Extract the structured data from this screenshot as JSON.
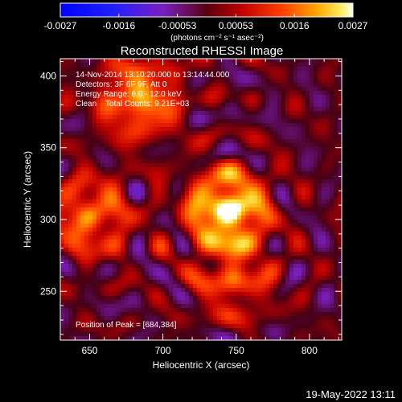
{
  "chart_data": {
    "type": "heatmap",
    "title": "Reconstructed RHESSI Image",
    "xlabel": "Heliocentric X (arcsec)",
    "ylabel": "Heliocentric Y (arcsec)",
    "xlim": [
      630,
      822
    ],
    "ylim": [
      216,
      412
    ],
    "xticks": [
      650,
      700,
      750,
      800
    ],
    "yticks": [
      250,
      300,
      350,
      400
    ],
    "colorbar": {
      "colormap": "rhessi-blue-purple-red-yellow-white",
      "range": [
        -0.0027,
        0.0027
      ],
      "ticks": [
        "-0.0027",
        "-0.0016",
        "-0.00053",
        "0.00053",
        "0.0016",
        "0.0027"
      ],
      "units_label": "(photons cm⁻² s⁻¹ asec⁻²)"
    },
    "annotations": [
      "14-Nov-2014 13:10:20.000 to 13:14:44.000",
      "Detectors: 3F 6F 9F, Att 0",
      "Energy Range: 6.0 - 12.0 keV",
      "Clean    Total Counts: 9.21E+03"
    ],
    "peak_label": "Position of Peak = [684,384]",
    "peak": {
      "x": 684,
      "y": 384
    },
    "sources": [
      {
        "x": 744,
        "y": 307,
        "amp": 1.0
      },
      {
        "x": 650,
        "y": 302,
        "amp": 0.6
      },
      {
        "x": 684,
        "y": 384,
        "amp": 0.7
      },
      {
        "x": 748,
        "y": 258,
        "amp": 0.45
      }
    ]
  },
  "footer": {
    "timestamp": "19-May-2022 13:11"
  }
}
